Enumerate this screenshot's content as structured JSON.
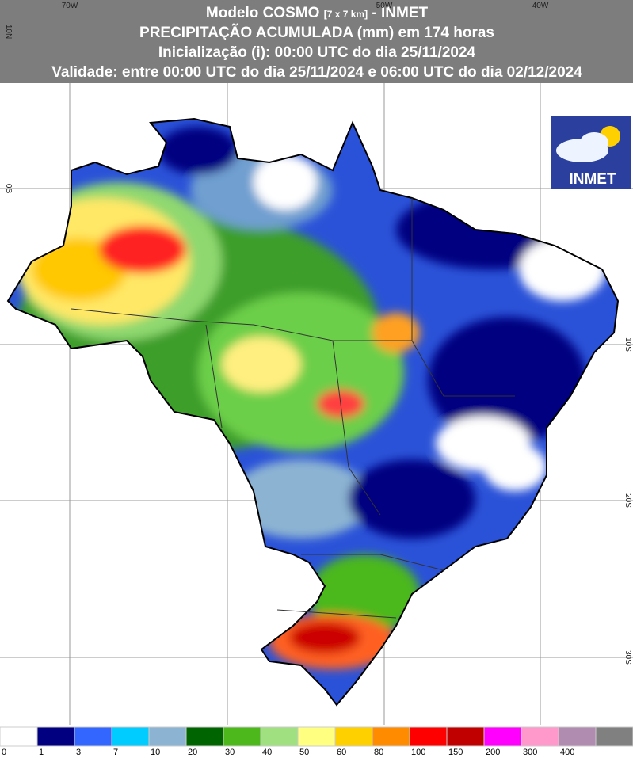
{
  "header": {
    "title_main": "Modelo COSMO",
    "title_res": "[7 x 7 km]",
    "title_end": "- INMET",
    "line2": "PRECIPITAÇÃO ACUMULADA (mm) em 174 horas",
    "line3": "Inicialização (i): 00:00 UTC do dia 25/11/2024",
    "line4": "Validade: entre 00:00 UTC do dia 25/11/2024 e 06:00 UTC do dia 02/12/2024"
  },
  "map": {
    "lon_labels": [
      "70W",
      "50W",
      "40W"
    ],
    "lat_left": [
      "10N",
      "0S"
    ],
    "lat_right": [
      "10S",
      "20S",
      "30S"
    ]
  },
  "logo": {
    "text": "INMET"
  },
  "legend": {
    "labels": [
      0,
      1,
      3,
      7,
      10,
      20,
      30,
      40,
      50,
      60,
      80,
      100,
      150,
      200,
      300,
      400
    ]
  }
}
